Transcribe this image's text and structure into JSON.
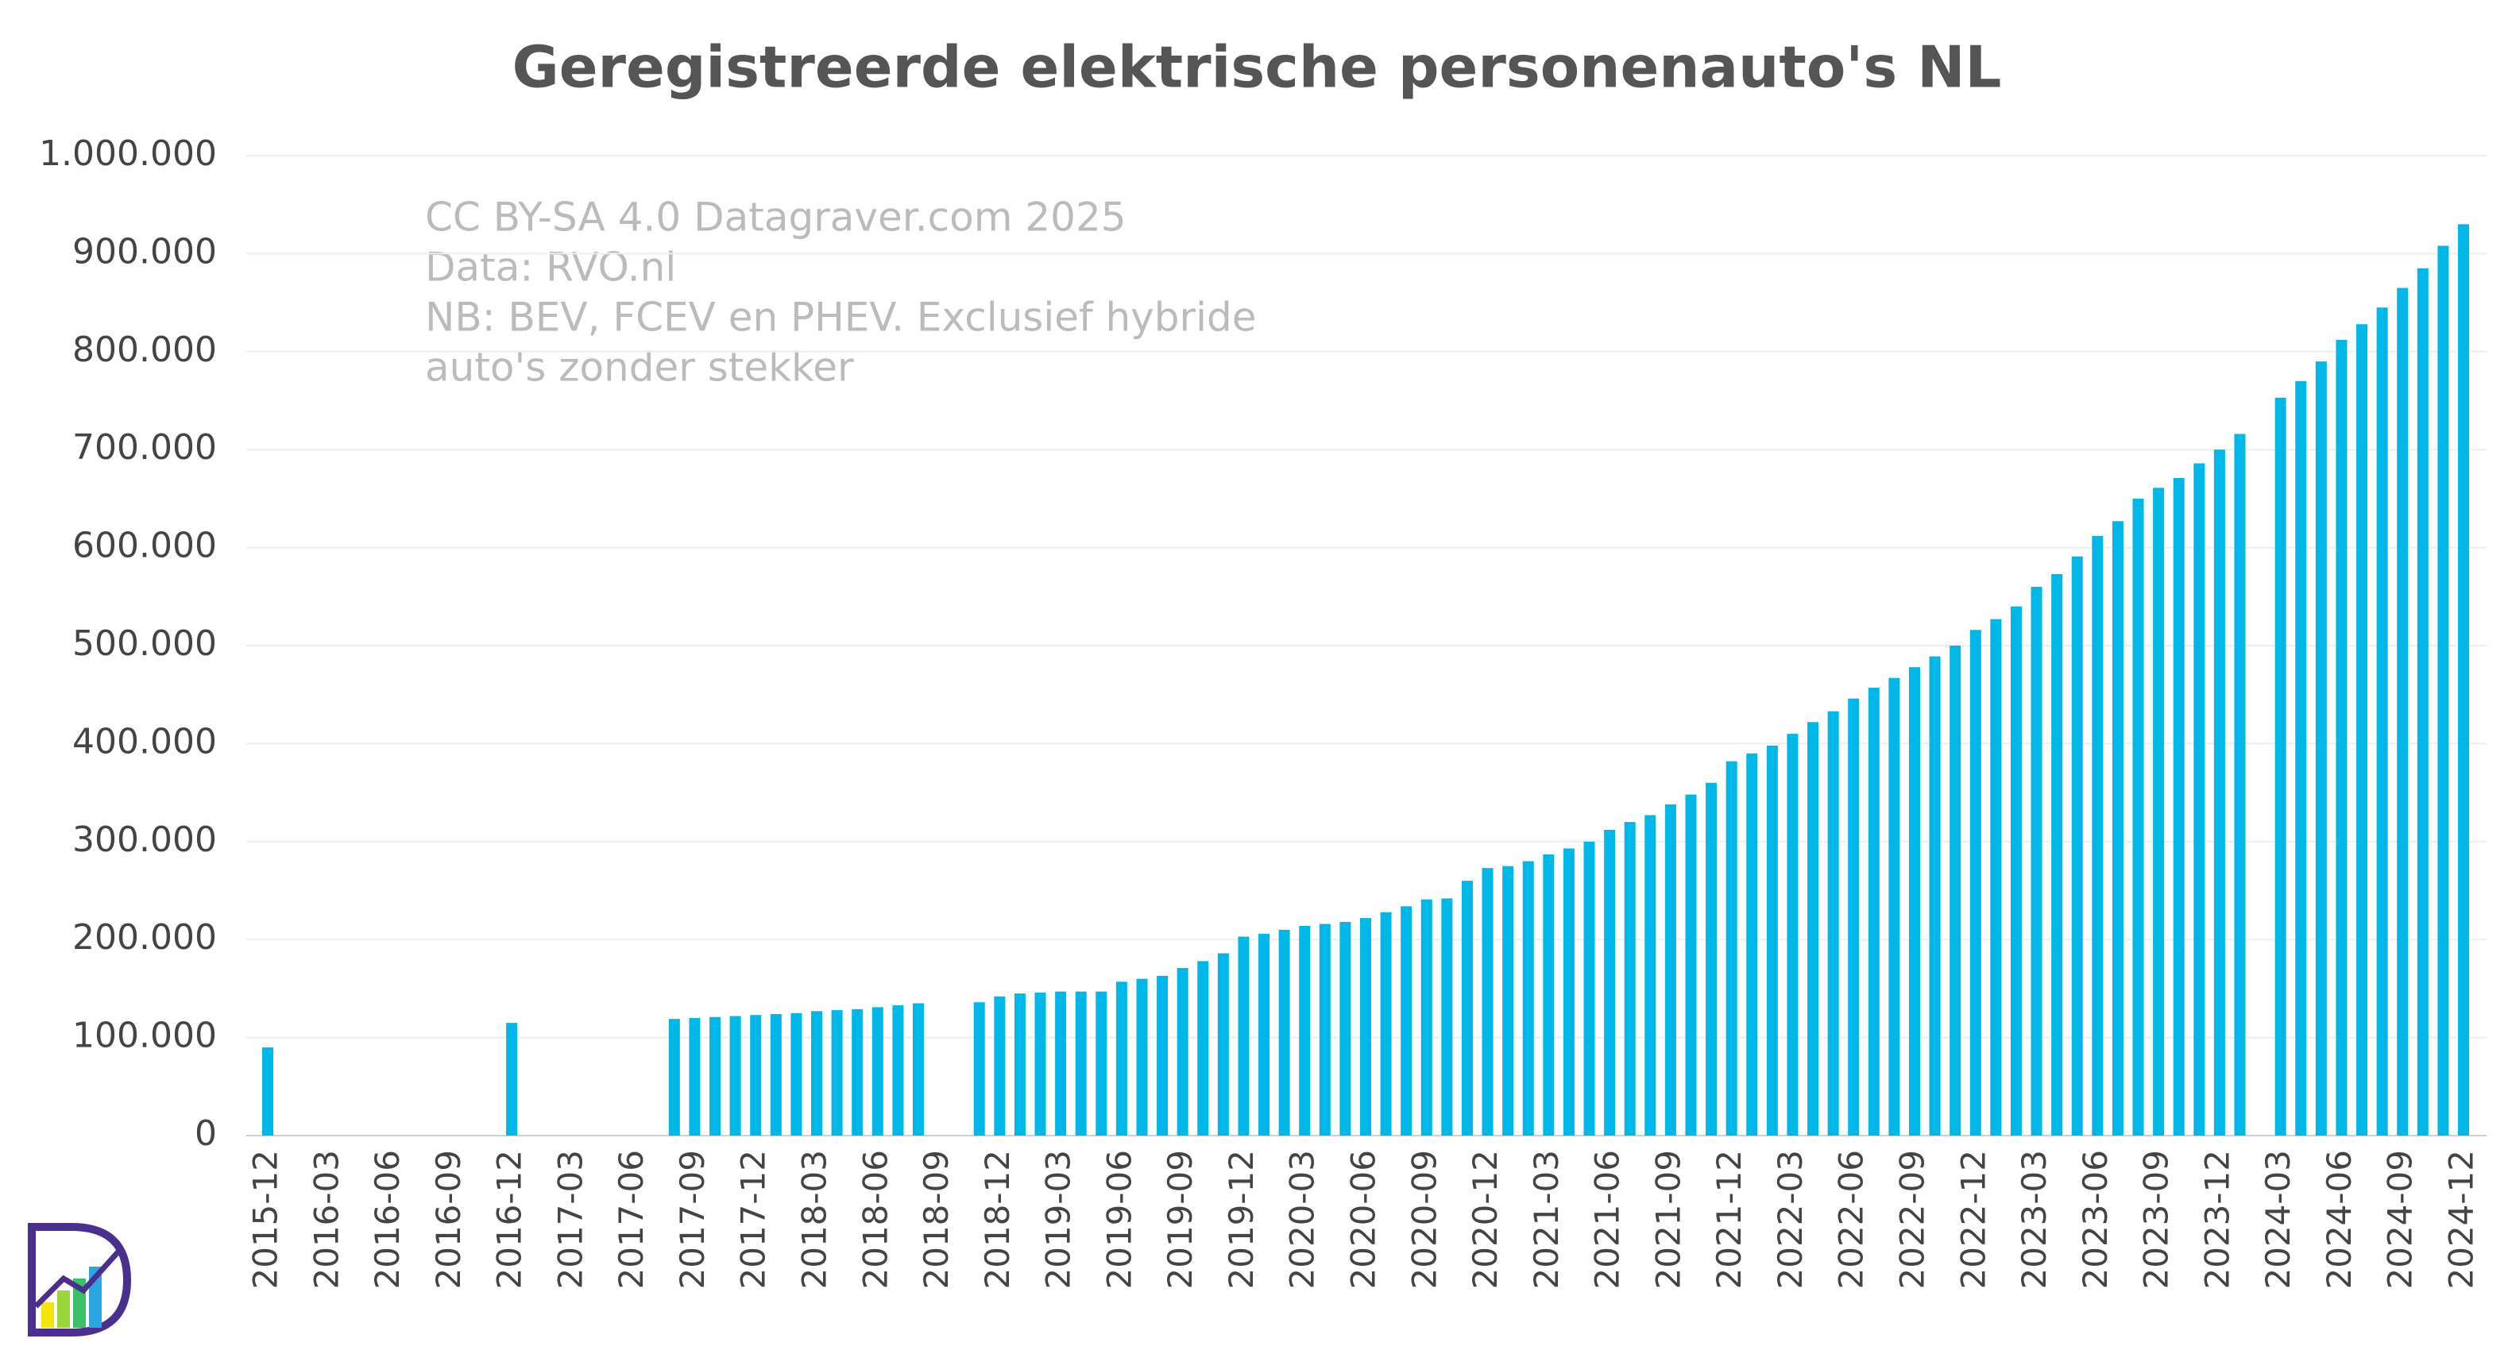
{
  "chart_data": {
    "type": "bar",
    "title": "Geregistreerde elektrische personenauto's NL",
    "annotations": [
      "CC BY-SA 4.0 Datagraver.com 2025",
      "Data: RVO.nl",
      "NB: BEV, FCEV en PHEV. Exclusief hybride",
      "auto's zonder stekker"
    ],
    "color": "#00b8e8",
    "grid": true,
    "ylim": [
      0,
      1000000
    ],
    "yticks": [
      0,
      {
        "value": 100000,
        "label": "100.000"
      },
      {
        "value": 200000,
        "label": "200.000"
      },
      {
        "value": 300000,
        "label": "300.000"
      },
      {
        "value": 400000,
        "label": "400.000"
      },
      {
        "value": 500000,
        "label": "500.000"
      },
      {
        "value": 600000,
        "label": "600.000"
      },
      {
        "value": 700000,
        "label": "700.000"
      },
      {
        "value": 800000,
        "label": "800.000"
      },
      {
        "value": 900000,
        "label": "900.000"
      },
      {
        "value": 1000000,
        "label": "1.000.000"
      }
    ],
    "categories": [
      "2015-12",
      null,
      null,
      "2016-03",
      null,
      null,
      "2016-06",
      null,
      null,
      "2016-09",
      null,
      null,
      "2016-12",
      null,
      null,
      "2017-03",
      null,
      null,
      "2017-06",
      null,
      null,
      "2017-09",
      null,
      null,
      "2017-12",
      null,
      null,
      "2018-03",
      null,
      null,
      "2018-06",
      null,
      null,
      "2018-09",
      null,
      null,
      "2018-12",
      null,
      null,
      "2019-03",
      null,
      null,
      "2019-06",
      null,
      null,
      "2019-09",
      null,
      null,
      "2019-12",
      null,
      null,
      "2020-03",
      null,
      null,
      "2020-06",
      null,
      null,
      "2020-09",
      null,
      null,
      "2020-12",
      null,
      null,
      "2021-03",
      null,
      null,
      "2021-06",
      null,
      null,
      "2021-09",
      null,
      null,
      "2021-12",
      null,
      null,
      "2022-03",
      null,
      null,
      "2022-06",
      null,
      null,
      "2022-09",
      null,
      null,
      "2022-12",
      null,
      null,
      "2023-03",
      null,
      null,
      "2023-06",
      null,
      null,
      "2023-09",
      null,
      null,
      "2023-12",
      null,
      null,
      "2024-03",
      null,
      null,
      "2024-06",
      null,
      null,
      "2024-09",
      null,
      null,
      "2024-12"
    ],
    "values": [
      90000,
      null,
      null,
      null,
      null,
      null,
      null,
      null,
      null,
      null,
      null,
      null,
      115000,
      null,
      null,
      null,
      null,
      null,
      null,
      null,
      119000,
      120000,
      121000,
      122000,
      123000,
      124000,
      125000,
      127000,
      128000,
      129000,
      131000,
      133000,
      135000,
      null,
      null,
      136000,
      142000,
      145000,
      146000,
      147000,
      147000,
      147000,
      157000,
      160000,
      163000,
      171000,
      178000,
      186000,
      203000,
      206000,
      210000,
      214000,
      216000,
      218000,
      222000,
      228000,
      234000,
      241000,
      242000,
      260000,
      273000,
      275000,
      280000,
      287000,
      293000,
      300000,
      312000,
      320000,
      327000,
      338000,
      348000,
      360000,
      382000,
      390000,
      398000,
      410000,
      422000,
      433000,
      446000,
      457000,
      467000,
      478000,
      489000,
      500000,
      516000,
      527000,
      540000,
      560000,
      573000,
      591000,
      612000,
      627000,
      650000,
      661000,
      671000,
      686000,
      700000,
      716000,
      null,
      753000,
      770000,
      790000,
      812000,
      828000,
      845000,
      865000,
      885000,
      908000,
      930000
    ]
  }
}
